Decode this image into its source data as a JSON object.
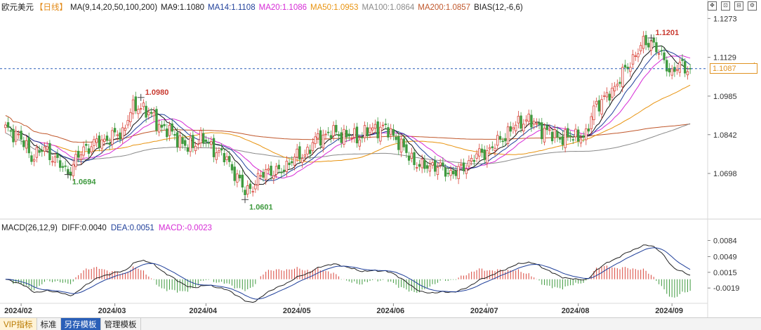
{
  "header": {
    "title": "欧元美元",
    "period": "【日线】",
    "ma_legend": [
      {
        "text": "MA(9,14,20,50,100,200)",
        "color": "#222222"
      },
      {
        "text": "MA9:1.1080",
        "color": "#1a1a1a"
      },
      {
        "text": "MA14:1.1108",
        "color": "#1f3f9a"
      },
      {
        "text": "MA20:1.1086",
        "color": "#d62ad6"
      },
      {
        "text": "MA50:1.0953",
        "color": "#e8930f"
      },
      {
        "text": "MA100:1.0864",
        "color": "#8a8a8a"
      },
      {
        "text": "MA200:1.0857",
        "color": "#c0572b"
      },
      {
        "text": "BIAS(12,-6,6)",
        "color": "#222222"
      }
    ]
  },
  "current_price": "1.1087",
  "macd_legend": [
    {
      "text": "MACD(26,12,9)",
      "color": "#222222"
    },
    {
      "text": "DIFF:0.0040",
      "color": "#222222"
    },
    {
      "text": "DEA:0.0051",
      "color": "#1f3f9a"
    },
    {
      "text": "MACD:-0.0023",
      "color": "#d62ad6"
    }
  ],
  "bottom_tabs": [
    "VIP指标",
    "标准",
    "另存模板",
    "管理模板"
  ],
  "colors": {
    "up": "#d9443a",
    "down": "#3f9a3f",
    "ma9": "#111111",
    "ma14": "#1f3f9a",
    "ma20": "#d62ad6",
    "ma50": "#e8930f",
    "ma100": "#8a8a8a",
    "ma200": "#c0572b",
    "dashed": "#2a5fb8"
  },
  "chart_data": [
    {
      "type": "candlestick",
      "title": "欧元美元【日线】",
      "y_ticks": [
        "1.1273",
        "1.1129",
        "1.0985",
        "1.0842",
        "1.0698"
      ],
      "ylim": [
        1.056,
        1.13
      ],
      "x_ticks": [
        "2024/02",
        "2024/03",
        "2024/04",
        "2024/05",
        "2024/06",
        "2024/07",
        "2024/08",
        "2024/09"
      ],
      "annotations": [
        {
          "label": "1.0694",
          "type": "low"
        },
        {
          "label": "1.0980",
          "type": "high"
        },
        {
          "label": "1.0601",
          "type": "low"
        },
        {
          "label": "1.1201",
          "type": "high"
        }
      ],
      "close_waypoints": [
        [
          0,
          1.086
        ],
        [
          5,
          1.084
        ],
        [
          10,
          1.076
        ],
        [
          15,
          1.079
        ],
        [
          20,
          1.074
        ],
        [
          24,
          1.07
        ],
        [
          30,
          1.079
        ],
        [
          35,
          1.081
        ],
        [
          40,
          1.083
        ],
        [
          45,
          1.085
        ],
        [
          48,
          1.093
        ],
        [
          52,
          1.095
        ],
        [
          55,
          1.092
        ],
        [
          60,
          1.087
        ],
        [
          65,
          1.084
        ],
        [
          70,
          1.079
        ],
        [
          75,
          1.083
        ],
        [
          80,
          1.079
        ],
        [
          85,
          1.075
        ],
        [
          88,
          1.07
        ],
        [
          92,
          1.063
        ],
        [
          96,
          1.066
        ],
        [
          100,
          1.071
        ],
        [
          105,
          1.07
        ],
        [
          110,
          1.075
        ],
        [
          115,
          1.077
        ],
        [
          120,
          1.083
        ],
        [
          125,
          1.085
        ],
        [
          130,
          1.084
        ],
        [
          135,
          1.083
        ],
        [
          140,
          1.086
        ],
        [
          145,
          1.087
        ],
        [
          150,
          1.083
        ],
        [
          155,
          1.076
        ],
        [
          160,
          1.072
        ],
        [
          165,
          1.073
        ],
        [
          170,
          1.07
        ],
        [
          175,
          1.071
        ],
        [
          180,
          1.076
        ],
        [
          185,
          1.078
        ],
        [
          190,
          1.082
        ],
        [
          195,
          1.087
        ],
        [
          200,
          1.09
        ],
        [
          205,
          1.087
        ],
        [
          210,
          1.084
        ],
        [
          215,
          1.083
        ],
        [
          220,
          1.084
        ],
        [
          223,
          1.083
        ],
        [
          226,
          1.095
        ],
        [
          230,
          1.097
        ],
        [
          234,
          1.102
        ],
        [
          238,
          1.108
        ],
        [
          242,
          1.114
        ],
        [
          245,
          1.118
        ],
        [
          248,
          1.119
        ],
        [
          252,
          1.113
        ],
        [
          256,
          1.107
        ],
        [
          259,
          1.11
        ],
        [
          263,
          1.1087
        ]
      ]
    },
    {
      "type": "macd",
      "y_ticks": [
        "0.0084",
        "0.0049",
        "0.0015",
        "-0.0019"
      ],
      "ylim": [
        -0.004,
        0.01
      ],
      "diff": 0.004,
      "dea": 0.0051,
      "macd": -0.0023
    }
  ]
}
